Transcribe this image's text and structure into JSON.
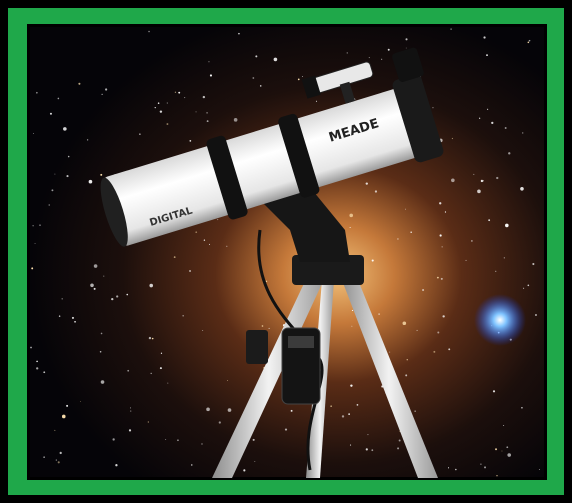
{
  "image": {
    "brand_label": "MEADE",
    "tube_label": "DIGITAL"
  }
}
